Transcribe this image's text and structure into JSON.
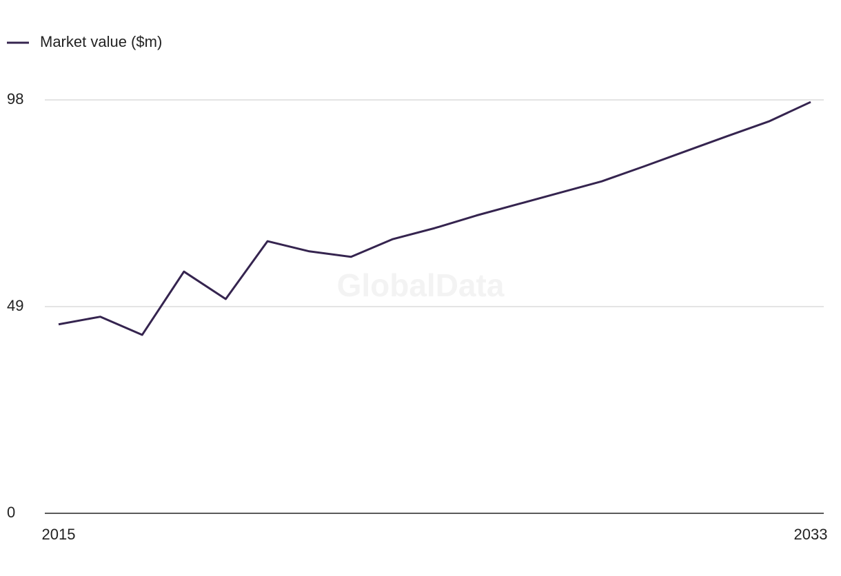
{
  "chart_data": {
    "type": "line",
    "watermark": "GlobalData",
    "x": [
      2015,
      2016,
      2017,
      2018,
      2019,
      2020,
      2021,
      2022,
      2023,
      2024,
      2025,
      2026,
      2027,
      2028,
      2029,
      2030,
      2031,
      2032,
      2033
    ],
    "series": [
      {
        "name": "Market value ($m)",
        "color": "#35244f",
        "values": [
          44.8,
          46.6,
          42.3,
          57.3,
          50.8,
          64.5,
          62.1,
          60.8,
          65.0,
          67.6,
          70.6,
          73.3,
          76.0,
          78.7,
          82.2,
          85.8,
          89.4,
          92.9,
          97.5
        ]
      }
    ],
    "xlim": [
      2015,
      2033
    ],
    "xticks": [
      2015,
      2033
    ],
    "ylim": [
      0,
      98
    ],
    "yticks": [
      0,
      49,
      98
    ],
    "grid": true,
    "legend": "top-left"
  }
}
